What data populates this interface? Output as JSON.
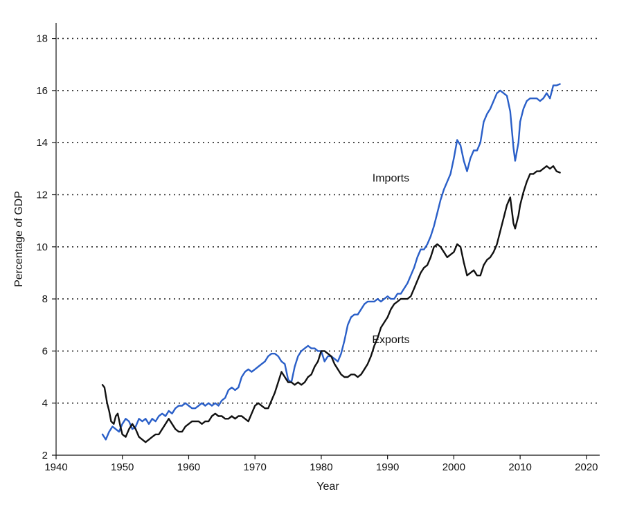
{
  "chart_data": {
    "type": "line",
    "title": "",
    "xlabel": "Year",
    "ylabel": "Percentage of GDP",
    "xlim": [
      1940,
      2022
    ],
    "ylim": [
      2,
      18.6
    ],
    "xticks": [
      1940,
      1950,
      1960,
      1970,
      1980,
      1990,
      2000,
      2010,
      2020
    ],
    "yticks": [
      2,
      4,
      6,
      8,
      10,
      12,
      14,
      16,
      18
    ],
    "grid": "horizontal-dotted",
    "legend": "none",
    "series": [
      {
        "name": "Imports",
        "color": "#2a5fc8",
        "label_at": [
          1990.5,
          12.5
        ],
        "points": [
          [
            1947.0,
            2.8
          ],
          [
            1947.5,
            2.6
          ],
          [
            1948.0,
            2.9
          ],
          [
            1948.5,
            3.1
          ],
          [
            1949.0,
            3.0
          ],
          [
            1949.5,
            2.9
          ],
          [
            1950.0,
            3.2
          ],
          [
            1950.5,
            3.4
          ],
          [
            1951.0,
            3.3
          ],
          [
            1951.5,
            3.0
          ],
          [
            1952.0,
            3.1
          ],
          [
            1952.5,
            3.4
          ],
          [
            1953.0,
            3.3
          ],
          [
            1953.5,
            3.4
          ],
          [
            1954.0,
            3.2
          ],
          [
            1954.5,
            3.4
          ],
          [
            1955.0,
            3.3
          ],
          [
            1955.5,
            3.5
          ],
          [
            1956.0,
            3.6
          ],
          [
            1956.5,
            3.5
          ],
          [
            1957.0,
            3.7
          ],
          [
            1957.5,
            3.6
          ],
          [
            1958.0,
            3.8
          ],
          [
            1958.5,
            3.9
          ],
          [
            1959.0,
            3.9
          ],
          [
            1959.5,
            4.0
          ],
          [
            1960.0,
            3.9
          ],
          [
            1960.5,
            3.8
          ],
          [
            1961.0,
            3.8
          ],
          [
            1961.5,
            3.9
          ],
          [
            1962.0,
            4.0
          ],
          [
            1962.5,
            3.9
          ],
          [
            1963.0,
            4.0
          ],
          [
            1963.5,
            3.9
          ],
          [
            1964.0,
            4.0
          ],
          [
            1964.5,
            3.9
          ],
          [
            1965.0,
            4.1
          ],
          [
            1965.5,
            4.2
          ],
          [
            1966.0,
            4.5
          ],
          [
            1966.5,
            4.6
          ],
          [
            1967.0,
            4.5
          ],
          [
            1967.5,
            4.6
          ],
          [
            1968.0,
            5.0
          ],
          [
            1968.5,
            5.2
          ],
          [
            1969.0,
            5.3
          ],
          [
            1969.5,
            5.2
          ],
          [
            1970.0,
            5.3
          ],
          [
            1970.5,
            5.4
          ],
          [
            1971.0,
            5.5
          ],
          [
            1971.5,
            5.6
          ],
          [
            1972.0,
            5.8
          ],
          [
            1972.5,
            5.9
          ],
          [
            1973.0,
            5.9
          ],
          [
            1973.5,
            5.8
          ],
          [
            1974.0,
            5.6
          ],
          [
            1974.5,
            5.5
          ],
          [
            1975.0,
            4.9
          ],
          [
            1975.5,
            4.8
          ],
          [
            1976.0,
            5.4
          ],
          [
            1976.5,
            5.8
          ],
          [
            1977.0,
            6.0
          ],
          [
            1977.5,
            6.1
          ],
          [
            1978.0,
            6.2
          ],
          [
            1978.5,
            6.1
          ],
          [
            1979.0,
            6.1
          ],
          [
            1979.5,
            6.0
          ],
          [
            1980.0,
            6.0
          ],
          [
            1980.5,
            5.6
          ],
          [
            1981.0,
            5.8
          ],
          [
            1981.5,
            5.8
          ],
          [
            1982.0,
            5.7
          ],
          [
            1982.5,
            5.6
          ],
          [
            1983.0,
            5.9
          ],
          [
            1983.5,
            6.4
          ],
          [
            1984.0,
            7.0
          ],
          [
            1984.5,
            7.3
          ],
          [
            1985.0,
            7.4
          ],
          [
            1985.5,
            7.4
          ],
          [
            1986.0,
            7.6
          ],
          [
            1986.5,
            7.8
          ],
          [
            1987.0,
            7.9
          ],
          [
            1987.5,
            7.9
          ],
          [
            1988.0,
            7.9
          ],
          [
            1988.5,
            8.0
          ],
          [
            1989.0,
            7.9
          ],
          [
            1989.5,
            8.0
          ],
          [
            1990.0,
            8.1
          ],
          [
            1990.5,
            8.0
          ],
          [
            1991.0,
            8.0
          ],
          [
            1991.5,
            8.2
          ],
          [
            1992.0,
            8.2
          ],
          [
            1992.5,
            8.4
          ],
          [
            1993.0,
            8.6
          ],
          [
            1993.5,
            8.9
          ],
          [
            1994.0,
            9.2
          ],
          [
            1994.5,
            9.6
          ],
          [
            1995.0,
            9.9
          ],
          [
            1995.5,
            9.9
          ],
          [
            1996.0,
            10.1
          ],
          [
            1996.5,
            10.4
          ],
          [
            1997.0,
            10.8
          ],
          [
            1997.5,
            11.3
          ],
          [
            1998.0,
            11.8
          ],
          [
            1998.5,
            12.2
          ],
          [
            1999.0,
            12.5
          ],
          [
            1999.5,
            12.8
          ],
          [
            2000.0,
            13.4
          ],
          [
            2000.5,
            14.1
          ],
          [
            2001.0,
            13.9
          ],
          [
            2001.5,
            13.3
          ],
          [
            2002.0,
            12.9
          ],
          [
            2002.5,
            13.4
          ],
          [
            2003.0,
            13.7
          ],
          [
            2003.5,
            13.7
          ],
          [
            2004.0,
            14.0
          ],
          [
            2004.5,
            14.8
          ],
          [
            2005.0,
            15.1
          ],
          [
            2005.5,
            15.3
          ],
          [
            2006.0,
            15.6
          ],
          [
            2006.5,
            15.9
          ],
          [
            2007.0,
            16.0
          ],
          [
            2007.5,
            15.9
          ],
          [
            2008.0,
            15.8
          ],
          [
            2008.5,
            15.2
          ],
          [
            2009.0,
            13.8
          ],
          [
            2009.25,
            13.3
          ],
          [
            2009.75,
            14.0
          ],
          [
            2010.0,
            14.8
          ],
          [
            2010.5,
            15.3
          ],
          [
            2011.0,
            15.6
          ],
          [
            2011.5,
            15.7
          ],
          [
            2012.0,
            15.7
          ],
          [
            2012.5,
            15.7
          ],
          [
            2013.0,
            15.6
          ],
          [
            2013.5,
            15.7
          ],
          [
            2014.0,
            15.9
          ],
          [
            2014.5,
            15.7
          ],
          [
            2015.0,
            16.2
          ],
          [
            2015.5,
            16.2
          ],
          [
            2016.0,
            16.25
          ]
        ]
      },
      {
        "name": "Exports",
        "color": "#111111",
        "label_at": [
          1990.5,
          6.3
        ],
        "points": [
          [
            1947.0,
            4.7
          ],
          [
            1947.3,
            4.6
          ],
          [
            1947.7,
            4.0
          ],
          [
            1948.0,
            3.7
          ],
          [
            1948.3,
            3.3
          ],
          [
            1948.7,
            3.2
          ],
          [
            1949.0,
            3.5
          ],
          [
            1949.3,
            3.6
          ],
          [
            1949.7,
            3.1
          ],
          [
            1950.0,
            2.8
          ],
          [
            1950.5,
            2.7
          ],
          [
            1951.0,
            3.0
          ],
          [
            1951.5,
            3.2
          ],
          [
            1952.0,
            3.0
          ],
          [
            1952.5,
            2.7
          ],
          [
            1953.0,
            2.6
          ],
          [
            1953.5,
            2.5
          ],
          [
            1954.0,
            2.6
          ],
          [
            1954.5,
            2.7
          ],
          [
            1955.0,
            2.8
          ],
          [
            1955.5,
            2.8
          ],
          [
            1956.0,
            3.0
          ],
          [
            1956.5,
            3.2
          ],
          [
            1957.0,
            3.4
          ],
          [
            1957.5,
            3.2
          ],
          [
            1958.0,
            3.0
          ],
          [
            1958.5,
            2.9
          ],
          [
            1959.0,
            2.9
          ],
          [
            1959.5,
            3.1
          ],
          [
            1960.0,
            3.2
          ],
          [
            1960.5,
            3.3
          ],
          [
            1961.0,
            3.3
          ],
          [
            1961.5,
            3.3
          ],
          [
            1962.0,
            3.2
          ],
          [
            1962.5,
            3.3
          ],
          [
            1963.0,
            3.3
          ],
          [
            1963.5,
            3.5
          ],
          [
            1964.0,
            3.6
          ],
          [
            1964.5,
            3.5
          ],
          [
            1965.0,
            3.5
          ],
          [
            1965.5,
            3.4
          ],
          [
            1966.0,
            3.4
          ],
          [
            1966.5,
            3.5
          ],
          [
            1967.0,
            3.4
          ],
          [
            1967.5,
            3.5
          ],
          [
            1968.0,
            3.5
          ],
          [
            1968.5,
            3.4
          ],
          [
            1969.0,
            3.3
          ],
          [
            1969.5,
            3.6
          ],
          [
            1970.0,
            3.9
          ],
          [
            1970.5,
            4.0
          ],
          [
            1971.0,
            3.9
          ],
          [
            1971.5,
            3.8
          ],
          [
            1972.0,
            3.8
          ],
          [
            1972.5,
            4.1
          ],
          [
            1973.0,
            4.4
          ],
          [
            1973.5,
            4.8
          ],
          [
            1974.0,
            5.2
          ],
          [
            1974.5,
            5.0
          ],
          [
            1975.0,
            4.8
          ],
          [
            1975.5,
            4.8
          ],
          [
            1976.0,
            4.7
          ],
          [
            1976.5,
            4.8
          ],
          [
            1977.0,
            4.7
          ],
          [
            1977.5,
            4.8
          ],
          [
            1978.0,
            5.0
          ],
          [
            1978.5,
            5.1
          ],
          [
            1979.0,
            5.4
          ],
          [
            1979.5,
            5.6
          ],
          [
            1980.0,
            6.0
          ],
          [
            1980.5,
            6.0
          ],
          [
            1981.0,
            5.9
          ],
          [
            1981.5,
            5.8
          ],
          [
            1982.0,
            5.5
          ],
          [
            1982.5,
            5.3
          ],
          [
            1983.0,
            5.1
          ],
          [
            1983.5,
            5.0
          ],
          [
            1984.0,
            5.0
          ],
          [
            1984.5,
            5.1
          ],
          [
            1985.0,
            5.1
          ],
          [
            1985.5,
            5.0
          ],
          [
            1986.0,
            5.1
          ],
          [
            1986.5,
            5.3
          ],
          [
            1987.0,
            5.5
          ],
          [
            1987.5,
            5.8
          ],
          [
            1988.0,
            6.2
          ],
          [
            1988.5,
            6.5
          ],
          [
            1989.0,
            6.9
          ],
          [
            1989.5,
            7.1
          ],
          [
            1990.0,
            7.3
          ],
          [
            1990.5,
            7.6
          ],
          [
            1991.0,
            7.8
          ],
          [
            1991.5,
            7.9
          ],
          [
            1992.0,
            8.0
          ],
          [
            1992.5,
            8.0
          ],
          [
            1993.0,
            8.0
          ],
          [
            1993.5,
            8.1
          ],
          [
            1994.0,
            8.4
          ],
          [
            1994.5,
            8.7
          ],
          [
            1995.0,
            9.0
          ],
          [
            1995.5,
            9.2
          ],
          [
            1996.0,
            9.3
          ],
          [
            1996.5,
            9.6
          ],
          [
            1997.0,
            10.0
          ],
          [
            1997.5,
            10.1
          ],
          [
            1998.0,
            10.0
          ],
          [
            1998.5,
            9.8
          ],
          [
            1999.0,
            9.6
          ],
          [
            1999.5,
            9.7
          ],
          [
            2000.0,
            9.8
          ],
          [
            2000.5,
            10.1
          ],
          [
            2001.0,
            10.0
          ],
          [
            2001.5,
            9.4
          ],
          [
            2002.0,
            8.9
          ],
          [
            2002.5,
            9.0
          ],
          [
            2003.0,
            9.1
          ],
          [
            2003.5,
            8.9
          ],
          [
            2004.0,
            8.9
          ],
          [
            2004.5,
            9.3
          ],
          [
            2005.0,
            9.5
          ],
          [
            2005.5,
            9.6
          ],
          [
            2006.0,
            9.8
          ],
          [
            2006.5,
            10.1
          ],
          [
            2007.0,
            10.6
          ],
          [
            2007.5,
            11.1
          ],
          [
            2008.0,
            11.6
          ],
          [
            2008.5,
            11.9
          ],
          [
            2009.0,
            10.9
          ],
          [
            2009.25,
            10.7
          ],
          [
            2009.75,
            11.2
          ],
          [
            2010.0,
            11.6
          ],
          [
            2010.5,
            12.1
          ],
          [
            2011.0,
            12.5
          ],
          [
            2011.5,
            12.8
          ],
          [
            2012.0,
            12.8
          ],
          [
            2012.5,
            12.9
          ],
          [
            2013.0,
            12.9
          ],
          [
            2013.5,
            13.0
          ],
          [
            2014.0,
            13.1
          ],
          [
            2014.5,
            13.0
          ],
          [
            2015.0,
            13.1
          ],
          [
            2015.5,
            12.9
          ],
          [
            2016.0,
            12.85
          ]
        ]
      }
    ]
  }
}
